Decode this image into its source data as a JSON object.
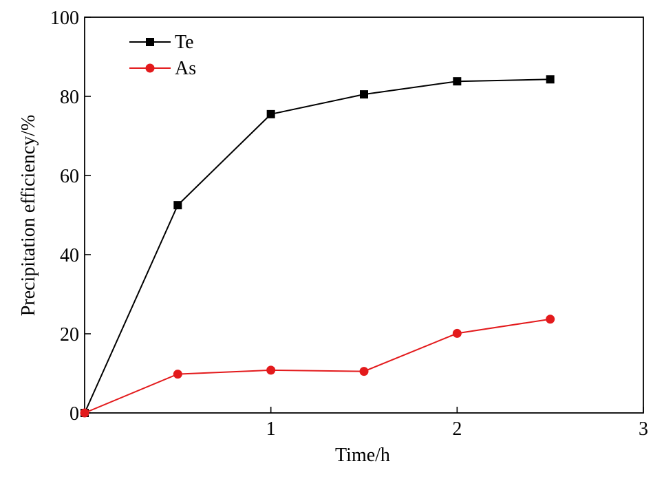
{
  "chart_data": {
    "type": "line",
    "title": "",
    "xlabel": "Time/h",
    "ylabel": "Precipitation efficiency/%",
    "xlim": [
      0,
      3
    ],
    "ylim": [
      0,
      100
    ],
    "xticks": [
      1,
      2,
      3
    ],
    "yticks": [
      0,
      20,
      40,
      60,
      80,
      100
    ],
    "x_tick_labels": [
      "1",
      "2",
      "3"
    ],
    "y_tick_labels": [
      "0",
      "20",
      "40",
      "60",
      "80",
      "100"
    ],
    "grid": false,
    "legend_position": "top-left",
    "series": [
      {
        "name": "Te",
        "color": "#000000",
        "marker": "square",
        "x": [
          0,
          0.5,
          1,
          1.5,
          2,
          2.5
        ],
        "y": [
          0,
          52.5,
          75.5,
          80.5,
          83.8,
          84.3
        ]
      },
      {
        "name": "As",
        "color": "#e31a1c",
        "marker": "circle",
        "x": [
          0,
          0.5,
          1,
          1.5,
          2,
          2.5
        ],
        "y": [
          0,
          9.8,
          10.8,
          10.5,
          20.1,
          23.7
        ]
      }
    ]
  }
}
